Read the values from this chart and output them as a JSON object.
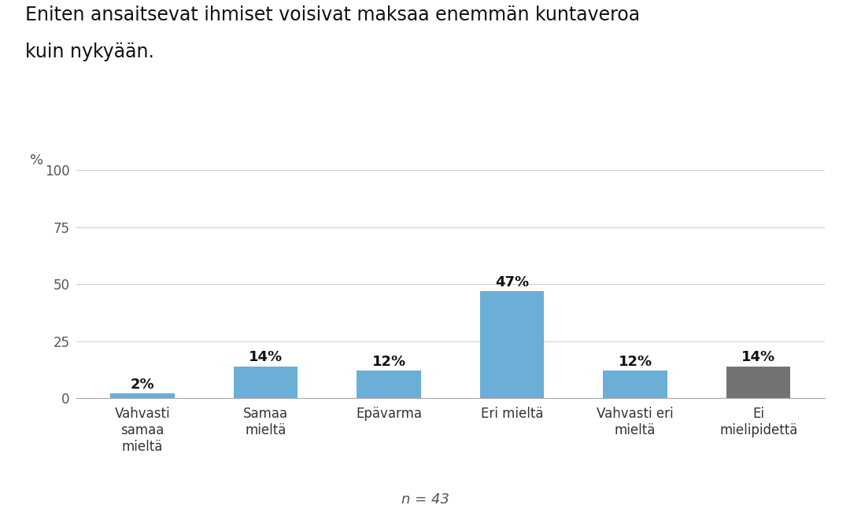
{
  "title_line1": "Eniten ansaitsevat ihmiset voisivat maksaa enemmän kuntaveroa",
  "title_line2": "kuin nykyään.",
  "categories": [
    "Vahvasti\nsamaa\nmieltä",
    "Samaa\nmieltä",
    "Epävarma",
    "Eri mieltä",
    "Vahvasti eri\nmieltä",
    "Ei\nmielipidettä"
  ],
  "values": [
    2,
    14,
    12,
    47,
    12,
    14
  ],
  "bar_colors": [
    "#6baed6",
    "#6baed6",
    "#6baed6",
    "#6baed6",
    "#6baed6",
    "#737373"
  ],
  "ylim": [
    0,
    100
  ],
  "yticks": [
    0,
    25,
    50,
    75,
    100
  ],
  "n_label": "n = 43",
  "background_color": "#ffffff",
  "title_fontsize": 17,
  "ylabel_fontsize": 13,
  "tick_fontsize": 12,
  "bar_label_fontsize": 13,
  "n_label_fontsize": 13,
  "grid_color": "#d0d0d0",
  "text_color": "#111111",
  "axis_color": "#aaaaaa"
}
